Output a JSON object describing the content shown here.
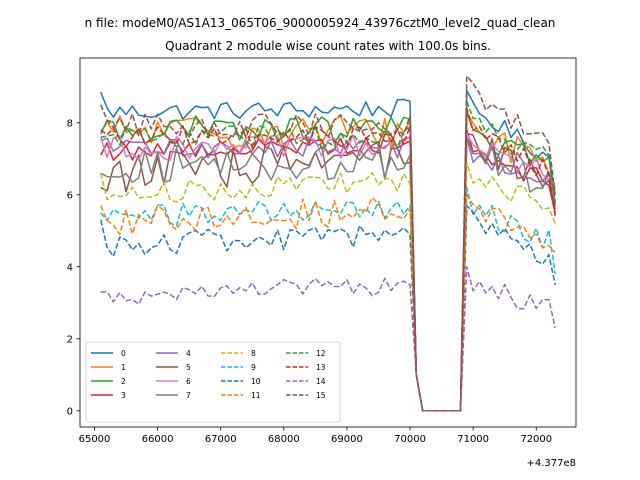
{
  "figure": {
    "suptitle": "n file: modeM0/AS1A13_065T06_9000005924_43976cztM0_level2_quad_clean",
    "title": "Quadrant 2 module wise count rates with 100.0s bins.",
    "x_offset_label": "+4.377e8"
  },
  "chart_data": {
    "type": "line",
    "title": "Quadrant 2 module wise count rates with 100.0s bins.",
    "xlabel": "",
    "ylabel": "",
    "x_offset_label": "+4.377e8",
    "xlim": [
      64770,
      72630
    ],
    "ylim": [
      -0.45,
      9.8
    ],
    "xticks": [
      65000,
      66000,
      67000,
      68000,
      69000,
      70000,
      71000,
      72000
    ],
    "yticks": [
      0,
      2,
      4,
      6,
      8
    ],
    "grid": false,
    "legend": {
      "position": "lower-left",
      "columns": 4
    },
    "x_start": 65100,
    "x_step": 100,
    "gap_start": 70100,
    "gap_end": 70800,
    "series": [
      {
        "name": "0",
        "color": "#1f77b4",
        "dashed": false,
        "baseline": 8.3,
        "first": 8.85,
        "after_gap": 8.9,
        "last": 5.7,
        "amp": 0.18,
        "trend": 0.1
      },
      {
        "name": "1",
        "color": "#ff7f0e",
        "dashed": false,
        "baseline": 7.75,
        "first": 7.7,
        "after_gap": 8.3,
        "last": 6.2,
        "amp": 0.35,
        "trend": 0.0
      },
      {
        "name": "2",
        "color": "#2ca02c",
        "dashed": false,
        "baseline": 7.8,
        "first": 7.7,
        "after_gap": 8.3,
        "last": 6.0,
        "amp": 0.28,
        "trend": 0.0
      },
      {
        "name": "3",
        "color": "#d62728",
        "dashed": false,
        "baseline": 7.2,
        "first": 7.1,
        "after_gap": 7.8,
        "last": 5.5,
        "amp": 0.2,
        "trend": 0.25
      },
      {
        "name": "4",
        "color": "#9467bd",
        "dashed": false,
        "baseline": 7.3,
        "first": 7.5,
        "after_gap": 7.6,
        "last": 5.8,
        "amp": 0.2,
        "trend": 0.0
      },
      {
        "name": "5",
        "color": "#8c564b",
        "dashed": false,
        "baseline": 6.6,
        "first": 6.2,
        "after_gap": 7.7,
        "last": 5.6,
        "amp": 0.4,
        "trend": 0.4
      },
      {
        "name": "6",
        "color": "#e377c2",
        "dashed": false,
        "baseline": 7.3,
        "first": 7.6,
        "after_gap": 7.7,
        "last": 6.3,
        "amp": 0.25,
        "trend": 0.0
      },
      {
        "name": "7",
        "color": "#7f7f7f",
        "dashed": false,
        "baseline": 6.8,
        "first": 6.6,
        "after_gap": 7.6,
        "last": 5.8,
        "amp": 0.35,
        "trend": 0.1
      },
      {
        "name": "8",
        "color": "#bcbd22",
        "dashed": true,
        "baseline": 6.0,
        "first": 6.6,
        "after_gap": 6.9,
        "last": 5.2,
        "amp": 0.22,
        "trend": 0.4
      },
      {
        "name": "9",
        "color": "#17becf",
        "dashed": true,
        "baseline": 5.4,
        "first": 5.5,
        "after_gap": 6.2,
        "last": 3.8,
        "amp": 0.25,
        "trend": 0.2
      },
      {
        "name": "10",
        "color": "#1f77b4",
        "dashed": true,
        "baseline": 4.6,
        "first": 5.3,
        "after_gap": 5.7,
        "last": 3.5,
        "amp": 0.25,
        "trend": 0.3
      },
      {
        "name": "11",
        "color": "#ff7f0e",
        "dashed": true,
        "baseline": 5.3,
        "first": 5.7,
        "after_gap": 6.0,
        "last": 4.4,
        "amp": 0.3,
        "trend": 0.25
      },
      {
        "name": "12",
        "color": "#2ca02c",
        "dashed": true,
        "baseline": 7.6,
        "first": 7.6,
        "after_gap": 8.6,
        "last": 5.8,
        "amp": 0.25,
        "trend": 0.0
      },
      {
        "name": "13",
        "color": "#d62728",
        "dashed": true,
        "baseline": 7.6,
        "first": 7.8,
        "after_gap": 8.4,
        "last": 5.4,
        "amp": 0.22,
        "trend": 0.0
      },
      {
        "name": "14",
        "color": "#9467bd",
        "dashed": true,
        "baseline": 3.2,
        "first": 3.3,
        "after_gap": 4.0,
        "last": 2.3,
        "amp": 0.2,
        "trend": 0.3
      },
      {
        "name": "15",
        "color": "#8c564b",
        "dashed": true,
        "baseline": 7.9,
        "first": 8.5,
        "after_gap": 9.3,
        "last": 6.0,
        "amp": 0.25,
        "trend": 0.0
      }
    ]
  }
}
